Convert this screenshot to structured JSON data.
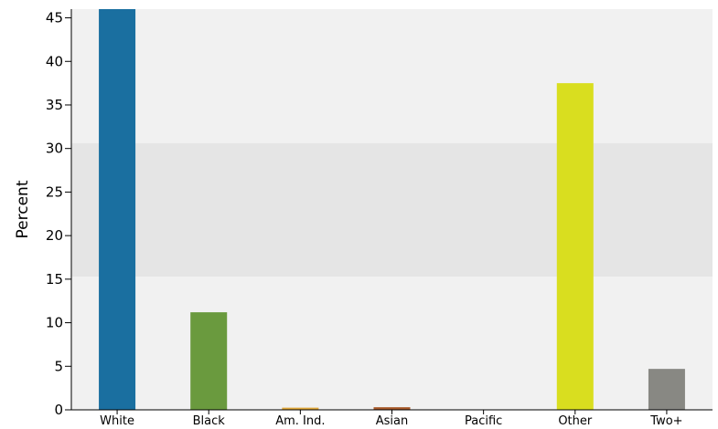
{
  "chart_data": {
    "type": "bar",
    "ylabel": "Percent",
    "xlabel": "",
    "title": "",
    "categories": [
      "White",
      "Black",
      "Am. Ind.",
      "Asian",
      "Pacific",
      "Other",
      "Two+"
    ],
    "values": [
      46.0,
      11.2,
      0.25,
      0.3,
      0.0,
      37.5,
      4.7
    ],
    "colors": [
      "#1a6fa0",
      "#6a9a3e",
      "#e0a83a",
      "#a8592a",
      "#cccccc",
      "#d9de1f",
      "#888883"
    ],
    "ylim": [
      0,
      46
    ],
    "yticks": [
      0,
      5,
      10,
      15,
      20,
      25,
      30,
      35,
      40,
      45
    ],
    "ytick_labels": [
      "0",
      "5",
      "10",
      "15",
      "20",
      "25",
      "30",
      "35",
      "40",
      "45"
    ],
    "highlight_band": [
      15.3,
      30.6
    ],
    "background_color": "#f1f1f1",
    "band_color": "#e5e5e5",
    "grid": false
  }
}
